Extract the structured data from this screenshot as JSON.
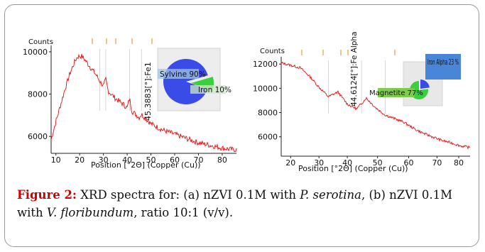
{
  "chart_data": [
    {
      "type": "line",
      "panel": "a",
      "title": "",
      "xlabel": "Position [°2Θ] (Copper (Cu))",
      "ylabel": "Counts",
      "xlim": [
        8,
        86
      ],
      "ylim": [
        5200,
        10300
      ],
      "xticks": [
        10,
        20,
        30,
        40,
        50,
        60,
        70,
        80
      ],
      "yticks": [
        6000,
        8000,
        10000
      ],
      "series": [
        {
          "color": "#e01010",
          "x": [
            8,
            10,
            12,
            14,
            16,
            18,
            19,
            20,
            21,
            22,
            23,
            24,
            25,
            26,
            27,
            28,
            30,
            31,
            32,
            35,
            38,
            40,
            41,
            42,
            45,
            46,
            50,
            55,
            60,
            65,
            70,
            75,
            80,
            84
          ],
          "y": [
            5850,
            6700,
            7500,
            8300,
            9000,
            9550,
            9750,
            9800,
            9780,
            9650,
            9500,
            9350,
            9200,
            9050,
            8900,
            8700,
            8350,
            8700,
            8150,
            7800,
            7550,
            7350,
            7800,
            7200,
            6900,
            7050,
            6600,
            6300,
            6100,
            5900,
            5700,
            5580,
            5450,
            5380
          ]
        }
      ],
      "peak_labels": [
        "45.3883[°]:Fe1"
      ],
      "inset_pie": {
        "slices": [
          {
            "label": "Sylvine 90%",
            "value": 90,
            "color": "#3a4be8"
          },
          {
            "label": "Iron 10%",
            "value": 10,
            "color": "#39d03c"
          }
        ]
      }
    },
    {
      "type": "line",
      "panel": "b",
      "title": "",
      "xlabel": "Position [°2Θ] (Copper (Cu))",
      "ylabel": "Counts",
      "xlim": [
        19,
        39
      ],
      "ylim": [
        4400,
        12600
      ],
      "xticks": [
        20,
        30,
        40,
        50,
        60,
        70,
        80
      ],
      "xtick_positions": [
        20,
        23,
        26,
        29.2,
        32.5,
        35.5,
        37.8
      ],
      "yticks": [
        6000,
        8000,
        10000,
        12000
      ],
      "series": [
        {
          "color": "#e01010",
          "x": [
            19,
            20,
            21,
            22,
            23,
            24,
            25,
            26,
            27,
            28,
            29,
            30,
            31,
            32,
            33,
            34,
            35,
            36,
            37,
            38,
            39
          ],
          "y": [
            12100,
            11900,
            11700,
            11000,
            10100,
            9300,
            9700,
            8700,
            8300,
            9200,
            8400,
            7800,
            7500,
            7200,
            6700,
            6300,
            6000,
            5700,
            5500,
            5250,
            5100
          ]
        }
      ],
      "peak_labels": [
        "44.6124[°]:Fe Alpha"
      ],
      "inset_pie": {
        "slices": [
          {
            "label": "Iron Alpha 23 %",
            "value": 23,
            "color": "#3a4be8"
          },
          {
            "label": "Magnetite 77%",
            "value": 77,
            "color": "#39d03c"
          }
        ]
      }
    }
  ],
  "caption": {
    "label": "Figure 2:",
    "text_1": " XRD spectra for: (a) nZVI 0.1M with ",
    "species_1": "P. serotina",
    "text_2": ", (b) nZVI 0.1M with ",
    "species_2": "V. floribundum",
    "text_3": ", ratio 10:1 (v/v)."
  }
}
